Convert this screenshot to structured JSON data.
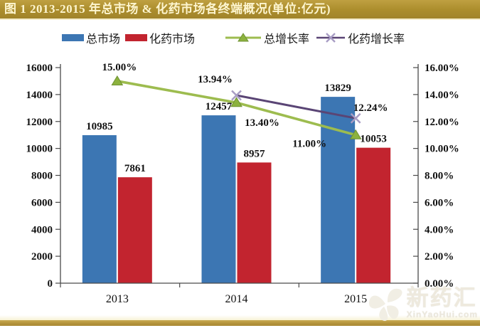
{
  "header": {
    "title": "图 1 2013-2015 年总市场 & 化药市场各终端概况(单位:亿元)"
  },
  "legend": {
    "items": [
      {
        "label": "总市场",
        "marker": "bar-swatch",
        "color": "#3c76b3"
      },
      {
        "label": "化药市场",
        "marker": "bar-swatch",
        "color": "#c2242f"
      },
      {
        "label": "总增长率",
        "marker": "line-triangle-marker",
        "color": "#9dbc4f"
      },
      {
        "label": "化药增长率",
        "marker": "line-x-marker",
        "color": "#5a4575"
      }
    ]
  },
  "chart_data": {
    "type": "bar",
    "subtype": "combo-bar-line-dual-axis",
    "title": "2013-2015 年总市场 & 化药市场各终端概况",
    "unit": "亿元",
    "categories": [
      "2013",
      "2014",
      "2015"
    ],
    "series": [
      {
        "name": "总市场",
        "type": "bar",
        "axis": "left",
        "color": "#3c76b3",
        "values": [
          10985,
          12457,
          13829
        ],
        "labels": [
          "10985",
          "12457",
          "13829"
        ]
      },
      {
        "name": "化药市场",
        "type": "bar",
        "axis": "left",
        "color": "#c2242f",
        "values": [
          7861,
          8957,
          10053
        ],
        "labels": [
          "7861",
          "8957",
          "10053"
        ]
      },
      {
        "name": "总增长率",
        "type": "line",
        "axis": "right",
        "color": "#9dbc4f",
        "marker": "triangle",
        "values": [
          15.0,
          13.4,
          11.0
        ],
        "labels": [
          "15.00%",
          "13.40%",
          "11.00%"
        ]
      },
      {
        "name": "化药增长率",
        "type": "line",
        "axis": "right",
        "color": "#5a4575",
        "marker": "x",
        "marker_color": "#a89cc4",
        "values": [
          null,
          13.94,
          12.24
        ],
        "labels": [
          null,
          "13.94%",
          "12.24%"
        ]
      }
    ],
    "left_axis": {
      "min": 0,
      "max": 16000,
      "step": 2000,
      "tick_labels": [
        "0",
        "2000",
        "4000",
        "6000",
        "8000",
        "10000",
        "12000",
        "14000",
        "16000"
      ]
    },
    "right_axis": {
      "min": 0,
      "max": 16,
      "step": 2,
      "tick_labels": [
        "0.00%",
        "2.00%",
        "4.00%",
        "6.00%",
        "8.00%",
        "10.00%",
        "12.00%",
        "14.00%",
        "16.00%"
      ]
    },
    "grid": false,
    "legend_position": "top"
  },
  "watermark": {
    "logo": "xinyaohui-logo",
    "text": "新药汇",
    "subtext": "XinYaoHui.com"
  }
}
